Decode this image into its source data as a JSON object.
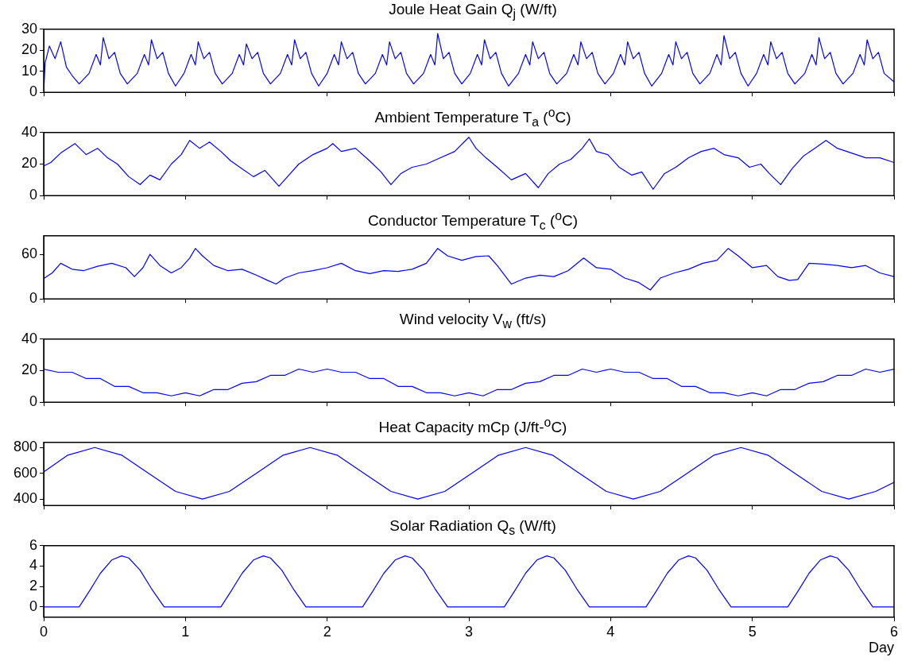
{
  "chart_data": [
    {
      "type": "line",
      "title": "Joule Heat Gain Q$_{j}$ (W/ft)",
      "xlim": [
        0,
        6
      ],
      "xticks": [
        0,
        1,
        2,
        3,
        4,
        5,
        6
      ],
      "ylim": [
        0,
        30
      ],
      "yticks": [
        0,
        10,
        20,
        30
      ],
      "tick_labels": "y",
      "grid": false,
      "legend": false,
      "marker": "none",
      "series": [
        {
          "color": "#0000ff",
          "x": [
            0,
            0.01,
            0.04,
            0.08,
            0.12,
            0.16,
            0.2,
            0.25,
            0.32,
            0.37,
            0.4,
            0.42,
            0.46,
            0.5,
            0.54,
            0.59,
            0.66,
            0.71,
            0.74,
            0.76,
            0.8,
            0.84,
            0.88,
            0.93,
            0.99,
            1.04,
            1.07,
            1.09,
            1.13,
            1.17,
            1.21,
            1.26,
            1.33,
            1.38,
            1.41,
            1.43,
            1.47,
            1.51,
            1.55,
            1.6,
            1.67,
            1.72,
            1.75,
            1.77,
            1.81,
            1.85,
            1.89,
            1.94,
            2.0,
            2.05,
            2.08,
            2.1,
            2.14,
            2.18,
            2.22,
            2.27,
            2.34,
            2.39,
            2.42,
            2.44,
            2.48,
            2.52,
            2.56,
            2.61,
            2.68,
            2.73,
            2.76,
            2.78,
            2.82,
            2.86,
            2.9,
            2.95,
            3.01,
            3.06,
            3.09,
            3.11,
            3.15,
            3.19,
            3.23,
            3.28,
            3.35,
            3.4,
            3.43,
            3.45,
            3.49,
            3.53,
            3.57,
            3.62,
            3.69,
            3.74,
            3.77,
            3.79,
            3.83,
            3.87,
            3.91,
            3.96,
            4.02,
            4.07,
            4.1,
            4.12,
            4.16,
            4.2,
            4.24,
            4.29,
            4.36,
            4.41,
            4.44,
            4.46,
            4.5,
            4.54,
            4.58,
            4.63,
            4.7,
            4.75,
            4.78,
            4.8,
            4.84,
            4.88,
            4.92,
            4.97,
            5.03,
            5.08,
            5.11,
            5.13,
            5.17,
            5.21,
            5.25,
            5.3,
            5.37,
            5.42,
            5.45,
            5.47,
            5.51,
            5.55,
            5.59,
            5.64,
            5.71,
            5.76,
            5.79,
            5.81,
            5.85,
            5.89,
            5.93,
            6.0
          ],
          "values": [
            0,
            14,
            22,
            16,
            24,
            12,
            8,
            4,
            9,
            18,
            13,
            26,
            16,
            19,
            9,
            4,
            9,
            18,
            13,
            25,
            16,
            19,
            9,
            3,
            9,
            18,
            13,
            24,
            16,
            19,
            9,
            4,
            9,
            18,
            13,
            23,
            16,
            19,
            9,
            4,
            9,
            18,
            13,
            25,
            16,
            19,
            9,
            3,
            9,
            18,
            13,
            24,
            16,
            19,
            9,
            4,
            9,
            18,
            13,
            24,
            16,
            19,
            9,
            4,
            9,
            18,
            13,
            28,
            16,
            19,
            9,
            4,
            9,
            18,
            13,
            25,
            16,
            19,
            9,
            3,
            9,
            18,
            13,
            24,
            16,
            19,
            9,
            4,
            9,
            18,
            13,
            24,
            16,
            19,
            9,
            4,
            9,
            18,
            13,
            24,
            16,
            19,
            9,
            3,
            9,
            18,
            13,
            24,
            16,
            19,
            9,
            4,
            9,
            18,
            13,
            27,
            16,
            19,
            9,
            3,
            9,
            18,
            13,
            24,
            16,
            19,
            9,
            4,
            9,
            18,
            13,
            26,
            16,
            19,
            9,
            4,
            9,
            18,
            13,
            25,
            16,
            19,
            9,
            5
          ]
        }
      ]
    },
    {
      "type": "line",
      "title": "Ambient Temperature T$_{a}$ ($^{o}$C)",
      "xlim": [
        0,
        6
      ],
      "xticks": [
        0,
        1,
        2,
        3,
        4,
        5,
        6
      ],
      "ylim": [
        0,
        40
      ],
      "yticks": [
        0,
        20,
        40
      ],
      "tick_labels": "y",
      "grid": false,
      "legend": false,
      "marker": "none",
      "series": [
        {
          "color": "#0000ff",
          "x": [
            0.005,
            0.05,
            0.12,
            0.22,
            0.3,
            0.38,
            0.45,
            0.52,
            0.6,
            0.68,
            0.75,
            0.82,
            0.9,
            0.97,
            1.03,
            1.1,
            1.17,
            1.25,
            1.32,
            1.4,
            1.48,
            1.56,
            1.66,
            1.72,
            1.8,
            1.9,
            2.0,
            2.04,
            2.1,
            2.2,
            2.3,
            2.38,
            2.45,
            2.52,
            2.6,
            2.7,
            2.8,
            2.9,
            3.0,
            3.05,
            3.12,
            3.2,
            3.3,
            3.4,
            3.49,
            3.56,
            3.64,
            3.72,
            3.8,
            3.85,
            3.9,
            3.98,
            4.06,
            4.15,
            4.22,
            4.3,
            4.38,
            4.46,
            4.55,
            4.64,
            4.73,
            4.8,
            4.9,
            4.98,
            5.06,
            5.12,
            5.2,
            5.28,
            5.36,
            5.44,
            5.52,
            5.6,
            5.7,
            5.8,
            5.9,
            6.0
          ],
          "values": [
            19,
            21,
            27,
            33,
            26,
            30,
            24,
            20,
            12,
            7,
            13,
            10,
            20,
            26,
            35,
            30,
            34,
            28,
            22,
            17,
            12,
            16,
            6,
            12,
            20,
            26,
            30,
            33,
            28,
            30,
            22,
            15,
            7,
            14,
            18,
            20,
            24,
            28,
            37,
            30,
            24,
            18,
            10,
            14,
            5,
            14,
            20,
            23,
            30,
            36,
            28,
            26,
            18,
            13,
            15,
            4,
            14,
            18,
            24,
            28,
            30,
            26,
            24,
            18,
            20,
            14,
            7,
            17,
            25,
            30,
            35,
            30,
            27,
            24,
            24,
            21
          ]
        }
      ]
    },
    {
      "type": "line",
      "title": "Conductor Temperature T$_{c}$ ($^{o}$C)",
      "xlim": [
        0,
        6
      ],
      "xticks": [
        0,
        1,
        2,
        3,
        4,
        5,
        6
      ],
      "ylim": [
        0,
        85
      ],
      "yticks": [
        0,
        60
      ],
      "tick_labels": "y",
      "grid": false,
      "legend": false,
      "marker": "none",
      "series": [
        {
          "color": "#0000ff",
          "x": [
            0.005,
            0.06,
            0.12,
            0.2,
            0.28,
            0.38,
            0.48,
            0.58,
            0.64,
            0.7,
            0.75,
            0.82,
            0.9,
            0.97,
            1.03,
            1.07,
            1.12,
            1.2,
            1.3,
            1.4,
            1.5,
            1.58,
            1.64,
            1.7,
            1.8,
            1.9,
            2.0,
            2.1,
            2.2,
            2.3,
            2.4,
            2.5,
            2.6,
            2.7,
            2.78,
            2.85,
            2.95,
            3.05,
            3.14,
            3.2,
            3.3,
            3.4,
            3.5,
            3.6,
            3.7,
            3.81,
            3.9,
            4.0,
            4.1,
            4.2,
            4.28,
            4.35,
            4.45,
            4.55,
            4.65,
            4.75,
            4.83,
            4.9,
            5.0,
            5.1,
            5.18,
            5.26,
            5.32,
            5.4,
            5.5,
            5.6,
            5.7,
            5.8,
            5.9,
            6.0
          ],
          "values": [
            28,
            35,
            48,
            40,
            38,
            44,
            48,
            42,
            30,
            42,
            60,
            45,
            35,
            42,
            55,
            68,
            58,
            45,
            38,
            40,
            32,
            25,
            20,
            28,
            35,
            38,
            42,
            48,
            38,
            34,
            38,
            37,
            40,
            48,
            68,
            58,
            52,
            57,
            58,
            45,
            20,
            28,
            32,
            30,
            38,
            55,
            42,
            40,
            28,
            22,
            12,
            28,
            35,
            40,
            48,
            52,
            68,
            58,
            42,
            45,
            30,
            25,
            26,
            48,
            47,
            45,
            42,
            45,
            35,
            30
          ]
        }
      ]
    },
    {
      "type": "line",
      "title": "Wind velocity V$_{w}$ (ft/s)",
      "xlim": [
        0,
        6
      ],
      "xticks": [
        0,
        1,
        2,
        3,
        4,
        5,
        6
      ],
      "ylim": [
        0,
        40
      ],
      "yticks": [
        0,
        20,
        40
      ],
      "tick_labels": "y",
      "grid": false,
      "legend": false,
      "marker": "none",
      "series": [
        {
          "color": "#0000ff",
          "x": [
            0,
            0.1,
            0.2,
            0.3,
            0.4,
            0.5,
            0.6,
            0.7,
            0.8,
            0.9,
            1.0,
            1.1,
            1.2,
            1.3,
            1.4,
            1.5,
            1.6,
            1.7,
            1.8,
            1.9,
            2.0,
            2.1,
            2.2,
            2.3,
            2.4,
            2.5,
            2.6,
            2.7,
            2.8,
            2.9,
            3.0,
            3.1,
            3.2,
            3.3,
            3.4,
            3.5,
            3.6,
            3.7,
            3.8,
            3.9,
            4.0,
            4.1,
            4.2,
            4.3,
            4.4,
            4.5,
            4.6,
            4.7,
            4.8,
            4.9,
            5.0,
            5.1,
            5.2,
            5.3,
            5.4,
            5.5,
            5.6,
            5.7,
            5.8,
            5.9,
            6.0
          ],
          "values": [
            21,
            19,
            19,
            15,
            15,
            10,
            10,
            6,
            6,
            4,
            6,
            4,
            8,
            8,
            12,
            13,
            17,
            17,
            21,
            19,
            21,
            19,
            19,
            15,
            15,
            10,
            10,
            6,
            6,
            4,
            6,
            4,
            8,
            8,
            12,
            13,
            17,
            17,
            21,
            19,
            21,
            19,
            19,
            15,
            15,
            10,
            10,
            6,
            6,
            4,
            6,
            4,
            8,
            8,
            12,
            13,
            17,
            17,
            21,
            19,
            21
          ]
        }
      ]
    },
    {
      "type": "line",
      "title": "Heat Capacity mCp (J/ft-$^{o}$C)",
      "xlim": [
        0,
        6
      ],
      "xticks": [
        0,
        1,
        2,
        3,
        4,
        5,
        6
      ],
      "ylim": [
        350,
        840
      ],
      "yticks": [
        400,
        600,
        800
      ],
      "tick_labels": "y",
      "grid": false,
      "legend": false,
      "marker": "none",
      "series": [
        {
          "color": "#0000ff",
          "x": [
            0,
            0.17,
            0.36,
            0.55,
            0.74,
            0.93,
            1.12,
            1.31,
            1.5,
            1.69,
            1.88,
            2.07,
            2.26,
            2.45,
            2.64,
            2.83,
            3.02,
            3.21,
            3.4,
            3.59,
            3.78,
            3.97,
            4.16,
            4.35,
            4.54,
            4.73,
            4.92,
            5.11,
            5.3,
            5.49,
            5.68,
            5.87,
            6.0
          ],
          "values": [
            610,
            741,
            800,
            741,
            600,
            459,
            400,
            459,
            600,
            741,
            800,
            741,
            600,
            459,
            400,
            459,
            600,
            741,
            800,
            741,
            600,
            459,
            400,
            459,
            600,
            741,
            800,
            741,
            600,
            459,
            400,
            459,
            530
          ]
        }
      ]
    },
    {
      "type": "line",
      "title": "Solar Radiation Q$_{s}$ (W/ft)",
      "xlabel": "Day",
      "xlim": [
        0,
        6
      ],
      "xticks": [
        0,
        1,
        2,
        3,
        4,
        5,
        6
      ],
      "ylim": [
        -1,
        6
      ],
      "yticks": [
        0,
        2,
        4,
        6
      ],
      "grid": false,
      "legend": false,
      "marker": "none",
      "series": [
        {
          "color": "#0000ff",
          "x": [
            0,
            0.25,
            0.32,
            0.4,
            0.48,
            0.55,
            0.6,
            0.68,
            0.76,
            0.85,
            1.25,
            1.32,
            1.4,
            1.48,
            1.55,
            1.6,
            1.68,
            1.76,
            1.85,
            2.25,
            2.32,
            2.4,
            2.48,
            2.55,
            2.6,
            2.68,
            2.76,
            2.85,
            3.25,
            3.32,
            3.4,
            3.48,
            3.55,
            3.6,
            3.68,
            3.76,
            3.85,
            4.25,
            4.32,
            4.4,
            4.48,
            4.55,
            4.6,
            4.68,
            4.76,
            4.85,
            5.25,
            5.32,
            5.4,
            5.48,
            5.55,
            5.6,
            5.68,
            5.76,
            5.85,
            6.0
          ],
          "values": [
            0,
            0,
            1.5,
            3.3,
            4.6,
            5,
            4.8,
            3.6,
            1.8,
            0,
            0,
            1.5,
            3.3,
            4.6,
            5,
            4.8,
            3.6,
            1.8,
            0,
            0,
            1.5,
            3.3,
            4.6,
            5,
            4.8,
            3.6,
            1.8,
            0,
            0,
            1.5,
            3.3,
            4.6,
            5,
            4.8,
            3.6,
            1.8,
            0,
            0,
            1.5,
            3.3,
            4.6,
            5,
            4.8,
            3.6,
            1.8,
            0,
            0,
            1.5,
            3.3,
            4.6,
            5,
            4.8,
            3.6,
            1.8,
            0,
            0
          ]
        }
      ]
    }
  ]
}
